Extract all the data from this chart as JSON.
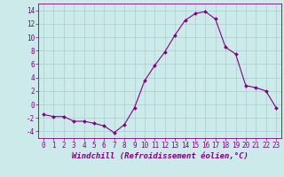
{
  "x": [
    0,
    1,
    2,
    3,
    4,
    5,
    6,
    7,
    8,
    9,
    10,
    11,
    12,
    13,
    14,
    15,
    16,
    17,
    18,
    19,
    20,
    21,
    22,
    23
  ],
  "y": [
    -1.5,
    -1.8,
    -1.8,
    -2.5,
    -2.5,
    -2.8,
    -3.2,
    -4.2,
    -3.0,
    -0.5,
    3.5,
    5.8,
    7.8,
    10.3,
    12.5,
    13.5,
    13.8,
    12.7,
    8.5,
    7.5,
    2.8,
    2.5,
    2.0,
    -0.5
  ],
  "line_color": "#800080",
  "marker": "D",
  "marker_size": 2,
  "bg_color": "#cceaea",
  "grid_color": "#aacccc",
  "xlabel": "Windchill (Refroidissement éolien,°C)",
  "xlim": [
    -0.5,
    23.5
  ],
  "ylim": [
    -5,
    15
  ],
  "yticks": [
    -4,
    -2,
    0,
    2,
    4,
    6,
    8,
    10,
    12,
    14
  ],
  "xticks": [
    0,
    1,
    2,
    3,
    4,
    5,
    6,
    7,
    8,
    9,
    10,
    11,
    12,
    13,
    14,
    15,
    16,
    17,
    18,
    19,
    20,
    21,
    22,
    23
  ],
  "tick_label_fontsize": 5.5,
  "xlabel_fontsize": 6.5,
  "tick_color": "#800080",
  "spine_color": "#800080",
  "linewidth": 0.8
}
